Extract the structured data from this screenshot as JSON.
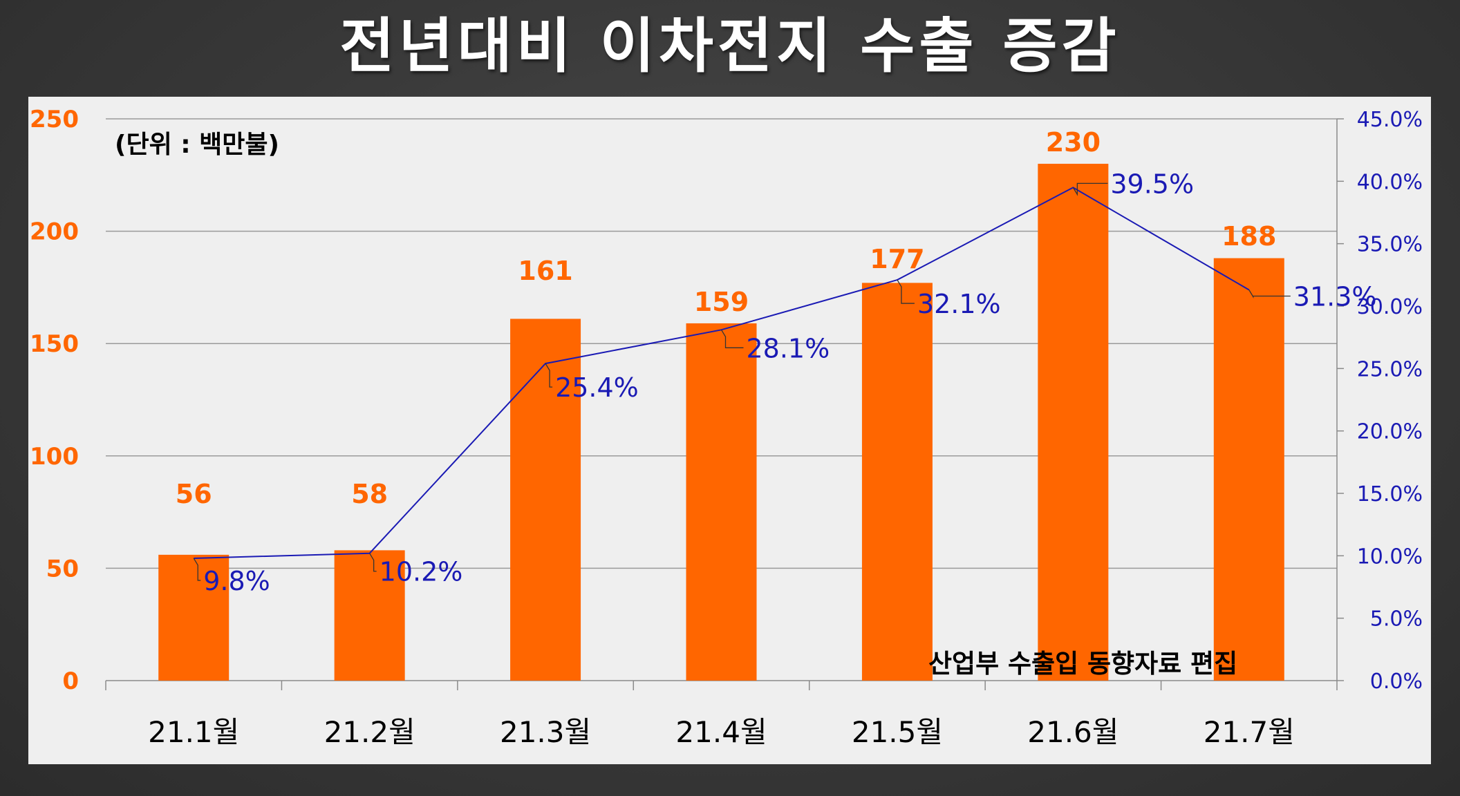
{
  "title": "전년대비 이차전지 수출 증감",
  "unit_note": "(단위 : 백만불)",
  "source_note": "산업부 수출입 동향자료 편집",
  "colors": {
    "bar": "#ff6600",
    "line": "#1a1ab4",
    "left_axis_text": "#ff6600",
    "right_axis_text": "#1a1ab4",
    "panel": "#efefef",
    "background": "#3a3a3a"
  },
  "chart_data": {
    "type": "bar",
    "categories": [
      "21.1월",
      "21.2월",
      "21.3월",
      "21.4월",
      "21.5월",
      "21.6월",
      "21.7월"
    ],
    "series": [
      {
        "type": "bar",
        "axis": "left",
        "values": [
          56,
          58,
          161,
          159,
          177,
          230,
          188
        ],
        "value_labels": [
          "56",
          "58",
          "161",
          "159",
          "177",
          "230",
          "188"
        ]
      },
      {
        "type": "line",
        "axis": "right",
        "values": [
          9.8,
          10.2,
          25.4,
          28.1,
          32.1,
          39.5,
          31.3
        ],
        "value_labels": [
          "9.8%",
          "10.2%",
          "25.4%",
          "28.1%",
          "32.1%",
          "39.5%",
          "31.3%"
        ]
      }
    ],
    "y_left": {
      "ylim": [
        0,
        250
      ],
      "ticks": [
        "0",
        "50",
        "100",
        "150",
        "200",
        "250"
      ]
    },
    "y_right": {
      "ylim": [
        0,
        45
      ],
      "ticks": [
        "0.0%",
        "5.0%",
        "10.0%",
        "15.0%",
        "20.0%",
        "25.0%",
        "30.0%",
        "35.0%",
        "40.0%",
        "45.0%"
      ]
    },
    "grid": true
  }
}
